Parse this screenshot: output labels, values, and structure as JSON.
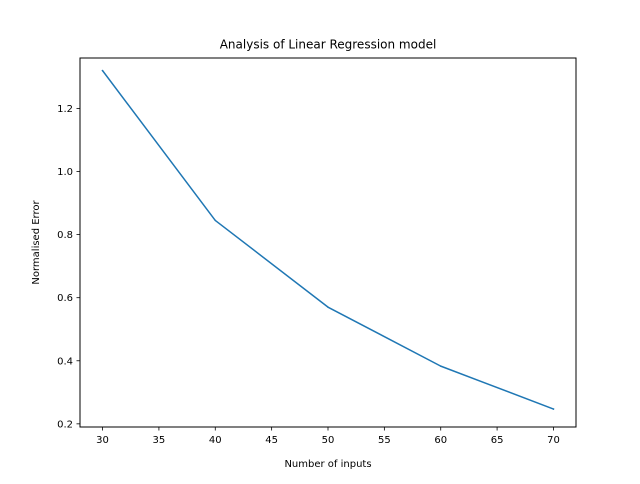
{
  "chart_data": {
    "type": "line",
    "title": "Analysis of Linear Regression model",
    "xlabel": "Number of inputs",
    "ylabel": "Normalised Error",
    "xlim": [
      28,
      72
    ],
    "ylim": [
      0.19,
      1.36
    ],
    "x_ticks": [
      30,
      35,
      40,
      45,
      50,
      55,
      60,
      65,
      70
    ],
    "y_ticks": [
      0.2,
      0.4,
      0.6,
      0.8,
      1.0,
      1.2
    ],
    "x_tick_labels": [
      "30",
      "35",
      "40",
      "45",
      "50",
      "55",
      "60",
      "65",
      "70"
    ],
    "y_tick_labels": [
      "0.2",
      "0.4",
      "0.6",
      "0.8",
      "1.0",
      "1.2"
    ],
    "grid": false,
    "series": [
      {
        "color": "#1f77b4",
        "x": [
          30,
          40,
          50,
          60,
          70
        ],
        "y": [
          1.32,
          0.845,
          0.57,
          0.383,
          0.247
        ]
      }
    ]
  }
}
